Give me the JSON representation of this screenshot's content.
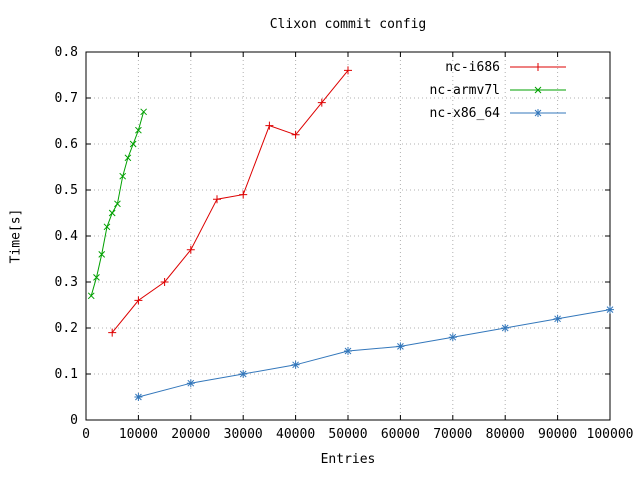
{
  "chart_data": {
    "type": "line",
    "title": "Clixon commit config",
    "xlabel": "Entries",
    "ylabel": "Time[s]",
    "xlim": [
      0,
      100000
    ],
    "ylim": [
      0,
      0.8
    ],
    "xtick_step": 10000,
    "ytick_step": 0.1,
    "grid": "dotted",
    "legend_position": "top-right-inside",
    "axis_color": "#000000",
    "grid_color": "#b0b0b0",
    "series": [
      {
        "name": "nc-i686",
        "color": "#dd0000",
        "marker": "plus",
        "points": [
          [
            5000,
            0.19
          ],
          [
            10000,
            0.26
          ],
          [
            15000,
            0.3
          ],
          [
            20000,
            0.37
          ],
          [
            25000,
            0.48
          ],
          [
            30000,
            0.49
          ],
          [
            35000,
            0.64
          ],
          [
            40000,
            0.62
          ],
          [
            45000,
            0.69
          ],
          [
            50000,
            0.76
          ]
        ]
      },
      {
        "name": "nc-armv7l",
        "color": "#00a000",
        "marker": "cross",
        "points": [
          [
            1000,
            0.27
          ],
          [
            2000,
            0.31
          ],
          [
            3000,
            0.36
          ],
          [
            4000,
            0.42
          ],
          [
            5000,
            0.45
          ],
          [
            6000,
            0.47
          ],
          [
            7000,
            0.53
          ],
          [
            8000,
            0.57
          ],
          [
            9000,
            0.6
          ],
          [
            10000,
            0.63
          ],
          [
            11000,
            0.67
          ]
        ]
      },
      {
        "name": "nc-x86_64",
        "color": "#3377bb",
        "marker": "asterisk",
        "points": [
          [
            10000,
            0.05
          ],
          [
            20000,
            0.08
          ],
          [
            30000,
            0.1
          ],
          [
            40000,
            0.12
          ],
          [
            50000,
            0.15
          ],
          [
            60000,
            0.16
          ],
          [
            70000,
            0.18
          ],
          [
            80000,
            0.2
          ],
          [
            90000,
            0.22
          ],
          [
            100000,
            0.24
          ]
        ]
      }
    ]
  }
}
